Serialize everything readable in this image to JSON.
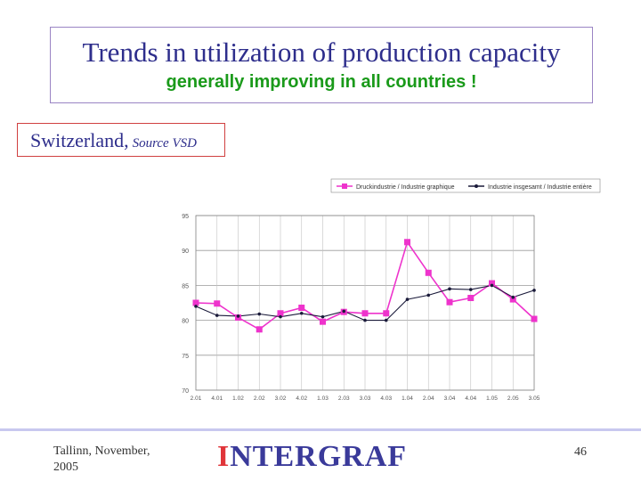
{
  "slide": {
    "title": "Trends in utilization of production capacity",
    "subtitle": "generally improving in all countries !",
    "country": "Switzerland,",
    "source": "Source VSD",
    "footer_left_line1": "Tallinn, November,",
    "footer_left_line2": "2005",
    "logo_first": "I",
    "logo_rest": "NTERGRAF",
    "page_number": "46"
  },
  "chart_data": {
    "type": "line",
    "title": "",
    "xlabel": "",
    "ylabel": "",
    "ylim": [
      70,
      95
    ],
    "yticks": [
      70,
      75,
      80,
      85,
      90,
      95
    ],
    "grid": true,
    "legend_position": "top-right",
    "categories": [
      "2.01",
      "4.01",
      "1.02",
      "2.02",
      "3.02",
      "4.02",
      "1.03",
      "2.03",
      "3.03",
      "4.03",
      "1.04",
      "2.04",
      "3.04",
      "4.04",
      "1.05",
      "2.05",
      "3.05"
    ],
    "series": [
      {
        "name": "Druckindustrie / Industrie graphique",
        "color": "#ee33cc",
        "marker": "square",
        "values": [
          82.5,
          82.4,
          80.4,
          78.7,
          81.0,
          81.8,
          79.8,
          81.2,
          81.0,
          81.0,
          91.2,
          86.8,
          82.6,
          83.2,
          85.3,
          83.0,
          80.2
        ]
      },
      {
        "name": "Industrie insgesamt / Industrie entière",
        "color": "#1a1a3a",
        "marker": "diamond",
        "values": [
          82.0,
          80.7,
          80.6,
          80.9,
          80.5,
          81.0,
          80.5,
          81.3,
          80.0,
          80.0,
          83.0,
          83.6,
          84.5,
          84.4,
          85.0,
          83.3,
          84.3
        ]
      }
    ]
  }
}
